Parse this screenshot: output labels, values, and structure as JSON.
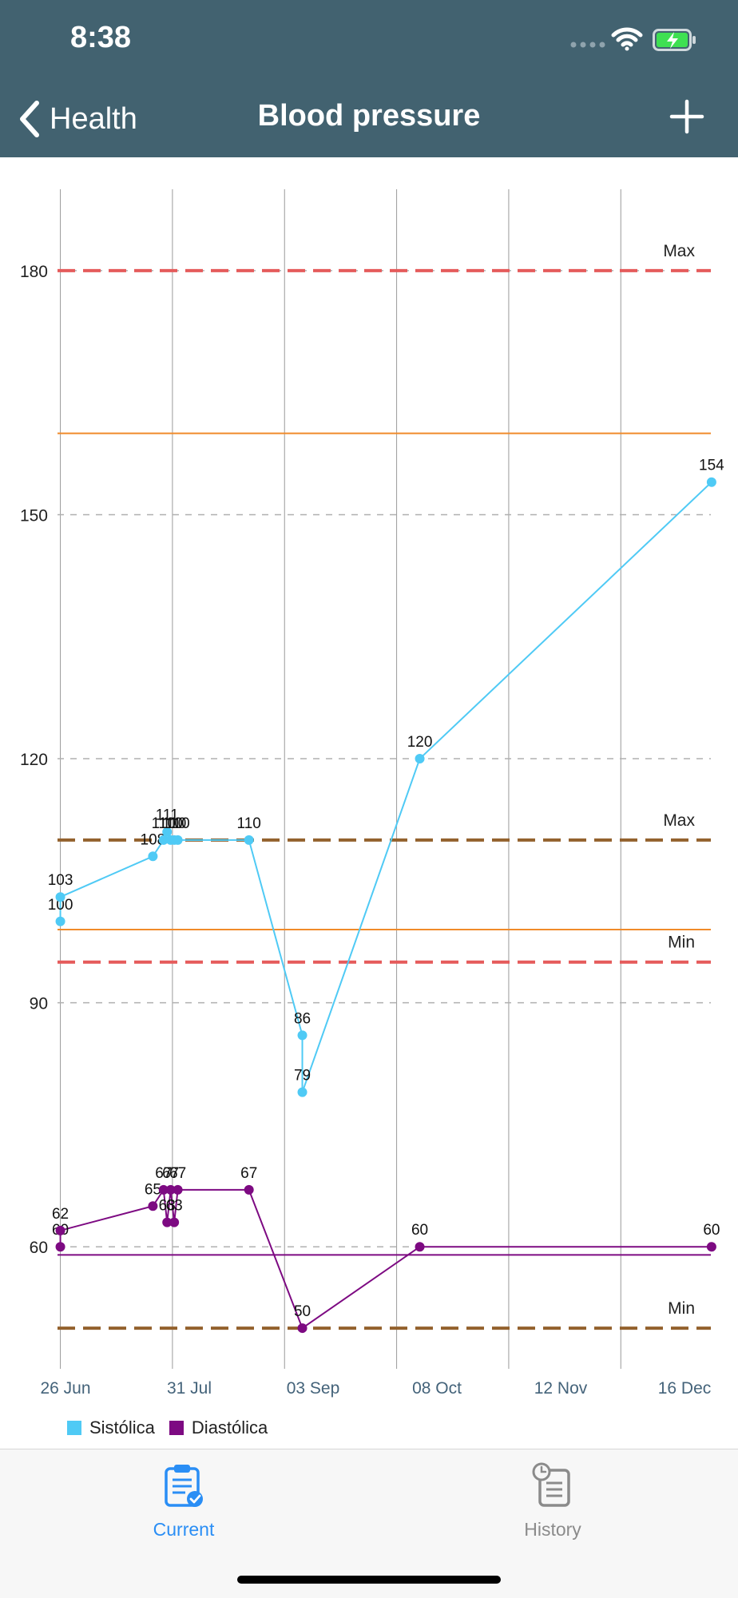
{
  "status_bar": {
    "time": "8:38"
  },
  "nav": {
    "back_label": "Health",
    "title": "Blood pressure"
  },
  "tabs": [
    {
      "label": "Current",
      "active": true
    },
    {
      "label": "History",
      "active": false
    }
  ],
  "colors": {
    "header": "#426270",
    "systolic": "#4fcaf5",
    "diastolic": "#7d0a82",
    "limit_red": "#e55b5b",
    "limit_brown": "#93612d",
    "orange_line": "#f08a2a",
    "purple_line": "#7d0a82",
    "tab_active": "#2a8ef5"
  },
  "chart_data": {
    "type": "line",
    "ylim": [
      45,
      190
    ],
    "yticks": [
      60,
      90,
      120,
      150,
      180
    ],
    "xlim_days": [
      -0.8,
      182.8
    ],
    "xticks": [
      {
        "label": "26 Jun",
        "date": "2023-06-26"
      },
      {
        "label": "31 Jul",
        "date": "2023-07-31"
      },
      {
        "label": "03 Sep",
        "date": "2023-09-03"
      },
      {
        "label": "08 Oct",
        "date": "2023-10-08"
      },
      {
        "label": "12 Nov",
        "date": "2023-11-12"
      },
      {
        "label": "16 Dec",
        "date": "2023-12-16"
      }
    ],
    "series": [
      {
        "name": "Sistólica",
        "points": [
          {
            "date": "2023-06-26",
            "value": 100
          },
          {
            "date": "2023-06-26",
            "value": 103
          },
          {
            "date": "2023-07-22",
            "value": 108
          },
          {
            "date": "2023-07-25",
            "value": 110
          },
          {
            "date": "2023-07-26",
            "value": 111
          },
          {
            "date": "2023-07-27",
            "value": 110
          },
          {
            "date": "2023-07-28",
            "value": 110
          },
          {
            "date": "2023-07-29",
            "value": 110
          },
          {
            "date": "2023-08-18",
            "value": 110
          },
          {
            "date": "2023-09-02",
            "value": 86
          },
          {
            "date": "2023-09-02",
            "value": 79
          },
          {
            "date": "2023-10-05",
            "value": 120
          },
          {
            "date": "2023-12-26",
            "value": 154
          }
        ]
      },
      {
        "name": "Diastólica",
        "points": [
          {
            "date": "2023-06-26",
            "value": 60
          },
          {
            "date": "2023-06-26",
            "value": 62
          },
          {
            "date": "2023-07-22",
            "value": 65
          },
          {
            "date": "2023-07-25",
            "value": 67
          },
          {
            "date": "2023-07-26",
            "value": 63
          },
          {
            "date": "2023-07-27",
            "value": 67
          },
          {
            "date": "2023-07-28",
            "value": 63
          },
          {
            "date": "2023-07-29",
            "value": 67
          },
          {
            "date": "2023-08-18",
            "value": 67
          },
          {
            "date": "2023-09-02",
            "value": 50
          },
          {
            "date": "2023-10-05",
            "value": 60
          },
          {
            "date": "2023-12-26",
            "value": 60
          }
        ]
      }
    ],
    "threshold_lines": [
      {
        "value": 180,
        "style": "dashed",
        "color": "#e55b5b",
        "label": "Max"
      },
      {
        "value": 95,
        "style": "dashed",
        "color": "#e55b5b",
        "label": "Min"
      },
      {
        "value": 110,
        "style": "dashed",
        "color": "#93612d",
        "label": "Max"
      },
      {
        "value": 50,
        "style": "dashed",
        "color": "#93612d",
        "label": "Min"
      },
      {
        "value": 160,
        "style": "solid",
        "color": "#f08a2a",
        "label": ""
      },
      {
        "value": 99,
        "style": "solid",
        "color": "#f08a2a",
        "label": ""
      },
      {
        "value": 59,
        "style": "solid",
        "color": "#7d0a82",
        "label": ""
      }
    ],
    "legend": [
      {
        "name": "Sistólica",
        "color": "#4fcaf5"
      },
      {
        "name": "Diastólica",
        "color": "#7d0a82"
      }
    ],
    "legend_position": "bottom-left",
    "grid": true
  }
}
